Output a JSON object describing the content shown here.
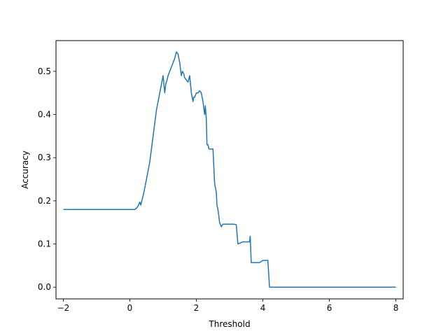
{
  "chart_data": {
    "type": "line",
    "title": "",
    "xlabel": "Threshold",
    "ylabel": "Accuracy",
    "xlim": [
      -2.22,
      8.22
    ],
    "ylim": [
      -0.0272,
      0.5712
    ],
    "xticks": [
      -2,
      0,
      2,
      4,
      6,
      8
    ],
    "yticks": [
      0.0,
      0.1,
      0.2,
      0.3,
      0.4,
      0.5
    ],
    "xtick_labels": [
      "−2",
      "0",
      "2",
      "4",
      "6",
      "8"
    ],
    "ytick_labels": [
      "0.0",
      "0.1",
      "0.2",
      "0.3",
      "0.4",
      "0.5"
    ],
    "grid": false,
    "legend": "none",
    "series": [
      {
        "color": "#1f77b4",
        "x": [
          -2.0,
          0.15,
          0.2,
          0.25,
          0.3,
          0.33,
          0.36,
          0.4,
          0.45,
          0.5,
          0.55,
          0.6,
          0.65,
          0.7,
          0.75,
          0.8,
          0.85,
          0.9,
          0.95,
          1.0,
          1.05,
          1.08,
          1.12,
          1.15,
          1.2,
          1.25,
          1.3,
          1.35,
          1.4,
          1.45,
          1.5,
          1.55,
          1.58,
          1.62,
          1.65,
          1.7,
          1.75,
          1.8,
          1.85,
          1.9,
          1.92,
          1.95,
          2.0,
          2.05,
          2.1,
          2.15,
          2.2,
          2.25,
          2.27,
          2.3,
          2.32,
          2.35,
          2.38,
          2.4,
          2.5,
          2.55,
          2.6,
          2.62,
          2.65,
          2.7,
          2.75,
          2.8,
          3.0,
          3.1,
          3.2,
          3.25,
          3.4,
          3.5,
          3.6,
          3.62,
          3.65,
          3.7,
          3.9,
          4.0,
          4.1,
          4.15,
          4.2,
          5.0,
          6.0,
          7.0,
          8.0
        ],
        "y": [
          0.18,
          0.18,
          0.183,
          0.188,
          0.197,
          0.19,
          0.2,
          0.212,
          0.23,
          0.25,
          0.27,
          0.29,
          0.32,
          0.35,
          0.38,
          0.41,
          0.43,
          0.45,
          0.47,
          0.49,
          0.45,
          0.47,
          0.48,
          0.49,
          0.5,
          0.51,
          0.52,
          0.53,
          0.545,
          0.54,
          0.52,
          0.49,
          0.5,
          0.495,
          0.485,
          0.48,
          0.475,
          0.49,
          0.45,
          0.43,
          0.44,
          0.44,
          0.45,
          0.45,
          0.455,
          0.45,
          0.43,
          0.4,
          0.42,
          0.39,
          0.33,
          0.33,
          0.32,
          0.32,
          0.32,
          0.24,
          0.22,
          0.19,
          0.18,
          0.15,
          0.14,
          0.146,
          0.146,
          0.146,
          0.145,
          0.1,
          0.105,
          0.105,
          0.105,
          0.118,
          0.057,
          0.057,
          0.057,
          0.062,
          0.062,
          0.062,
          0.0,
          0.0,
          0.0,
          0.0,
          0.0
        ]
      }
    ]
  }
}
